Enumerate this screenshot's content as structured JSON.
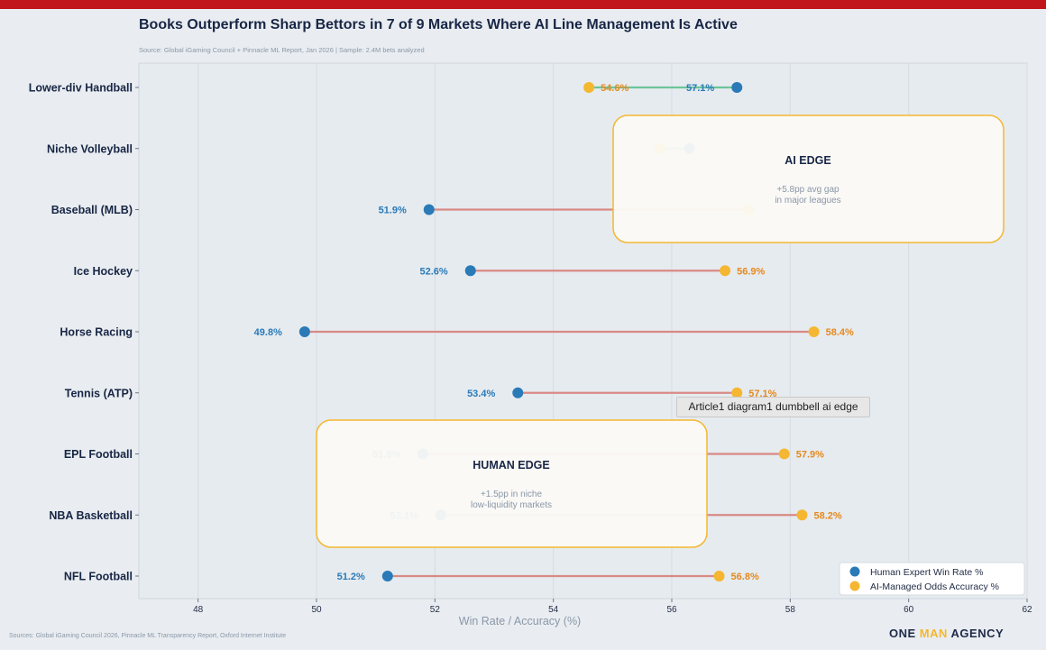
{
  "title": "Books Outperform Sharp Bettors in 7 of 9 Markets Where AI Line Management Is Active",
  "subtitle": "Source: Global iGaming Council + Pinnacle ML Report, Jan 2026 | Sample: 2.4M bets analyzed",
  "footer_sources": "Sources: Global iGaming Council 2026, Pinnacle ML Transparency Report, Oxford Internet Institute",
  "brand": {
    "word1": "ONE",
    "word2": "MAN",
    "word3": "AGENCY"
  },
  "tooltip": "Article1 diagram1 dumbbell ai edge",
  "colors": {
    "human": "#2a7ab8",
    "ai": "#f5b731",
    "ai_label": "#e58a20",
    "ai_gap_line": "#d88a84",
    "human_gap_line": "#6cc59a",
    "callout_border": "#f5b731"
  },
  "callouts": [
    {
      "title": "AI EDGE",
      "text": [
        "+5.8pp avg gap",
        "in major leagues"
      ]
    },
    {
      "title": "HUMAN EDGE",
      "text": [
        "+1.5pp in niche",
        "low-liquidity markets"
      ]
    }
  ],
  "chart_data": {
    "type": "dumbbell",
    "xlabel": "Win Rate / Accuracy (%)",
    "xlim": [
      47,
      62
    ],
    "xticks": [
      48,
      50,
      52,
      54,
      56,
      58,
      60,
      62
    ],
    "grid": "vertical",
    "legend_position": "bottom-right",
    "categories": [
      "Lower-div Handball",
      "Niche Volleyball",
      "Baseball (MLB)",
      "Ice Hockey",
      "Horse Racing",
      "Tennis (ATP)",
      "EPL Football",
      "NBA Basketball",
      "NFL Football"
    ],
    "series": [
      {
        "name": "Human Expert Win Rate %",
        "values": [
          57.1,
          56.3,
          51.9,
          52.6,
          49.8,
          53.4,
          51.8,
          52.1,
          51.2
        ]
      },
      {
        "name": "AI-Managed Odds Accuracy %",
        "values": [
          54.6,
          55.8,
          57.3,
          56.9,
          58.4,
          57.1,
          57.9,
          58.2,
          56.8
        ]
      }
    ],
    "labels_human": [
      "57.1%",
      "",
      "51.9%",
      "52.6%",
      "49.8%",
      "53.4%",
      "51.8%",
      "52.1%",
      "51.2%"
    ],
    "labels_ai": [
      "54.6%",
      "",
      "",
      "56.9%",
      "58.4%",
      "57.1%",
      "57.9%",
      "58.2%",
      "56.8%"
    ]
  }
}
